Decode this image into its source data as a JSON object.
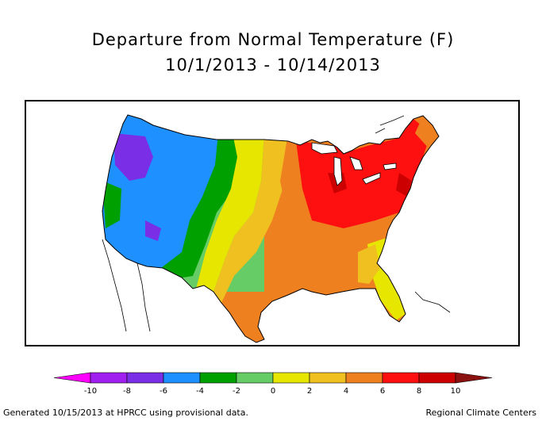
{
  "title": "Departure from Normal Temperature (F)",
  "subtitle": "10/1/2013 - 10/14/2013",
  "legend": {
    "bins": [
      {
        "min": -12,
        "max": -10,
        "color": "#ff00ff"
      },
      {
        "min": -10,
        "max": -8,
        "color": "#a020f0"
      },
      {
        "min": -8,
        "max": -6,
        "color": "#7a2ee6"
      },
      {
        "min": -6,
        "max": -4,
        "color": "#1e90ff"
      },
      {
        "min": -4,
        "max": -2,
        "color": "#00a000"
      },
      {
        "min": -2,
        "max": 0,
        "color": "#66cc66"
      },
      {
        "min": 0,
        "max": 2,
        "color": "#e6e600"
      },
      {
        "min": 2,
        "max": 4,
        "color": "#f0c020"
      },
      {
        "min": 4,
        "max": 6,
        "color": "#ee8020"
      },
      {
        "min": 6,
        "max": 8,
        "color": "#ff1010"
      },
      {
        "min": 8,
        "max": 10,
        "color": "#cc0000"
      },
      {
        "min": 10,
        "max": 12,
        "color": "#8b1010"
      }
    ],
    "tick_labels": [
      "-10",
      "-8",
      "-6",
      "-4",
      "-2",
      "0",
      "2",
      "4",
      "6",
      "8",
      "10"
    ]
  },
  "footer_left": "Generated 10/15/2013 at HPRCC using provisional data.",
  "footer_right": "Regional Climate Centers"
}
